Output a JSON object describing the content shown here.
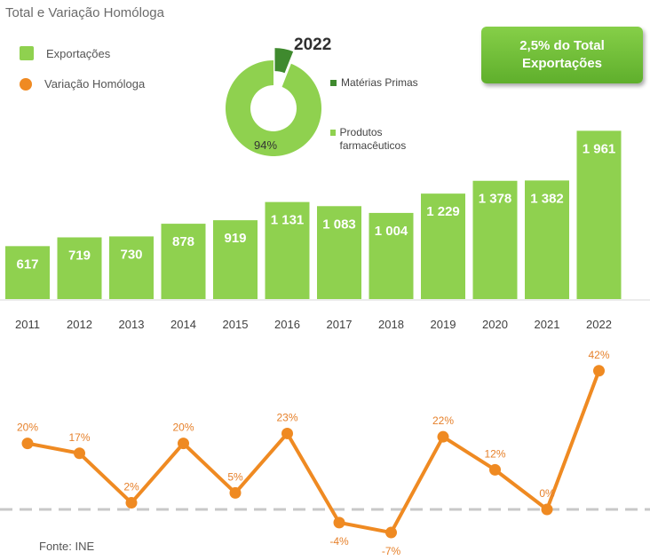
{
  "title": "Total e Variação Homóloga",
  "legend": {
    "exports": "Exportações",
    "variation": "Variação Homóloga"
  },
  "badge": {
    "line1": "2,5% do Total",
    "line2": "Exportações"
  },
  "donut": {
    "year": "2022",
    "label_products": "94%",
    "legend_raw": "Matérias Primas",
    "legend_products": "Produtos farmacêuticos",
    "slices": [
      {
        "name": "Produtos farmacêuticos",
        "value": 94,
        "color": "#8fd14f"
      },
      {
        "name": "Matérias Primas",
        "value": 6,
        "color": "#3f8a2e"
      }
    ]
  },
  "source": "Fonte: INE",
  "colors": {
    "bar": "#8fd14f",
    "line": "#ef8a22",
    "raw_materials": "#3f8a2e",
    "zero_line": "#cccccc"
  },
  "chart_data": [
    {
      "type": "bar",
      "categories": [
        "2011",
        "2012",
        "2013",
        "2014",
        "2015",
        "2016",
        "2017",
        "2018",
        "2019",
        "2020",
        "2021",
        "2022"
      ],
      "values": [
        617,
        719,
        730,
        878,
        919,
        1131,
        1083,
        1004,
        1229,
        1378,
        1382,
        1961
      ],
      "data_labels": [
        "617",
        "719",
        "730",
        "878",
        "919",
        "1 131",
        "1 083",
        "1 004",
        "1 229",
        "1 378",
        "1 382",
        "1 961"
      ],
      "series_name": "Exportações",
      "ylim": [
        0,
        2000
      ]
    },
    {
      "type": "line",
      "categories": [
        "2011",
        "2012",
        "2013",
        "2014",
        "2015",
        "2016",
        "2017",
        "2018",
        "2019",
        "2020",
        "2021",
        "2022"
      ],
      "values": [
        20,
        17,
        2,
        20,
        5,
        23,
        -4,
        -7,
        22,
        12,
        0,
        42
      ],
      "data_labels": [
        "20%",
        "17%",
        "2%",
        "20%",
        "5%",
        "23%",
        "-4%",
        "-7%",
        "22%",
        "12%",
        "0%",
        "42%"
      ],
      "series_name": "Variação Homóloga",
      "ylim": [
        -10,
        45
      ]
    },
    {
      "type": "pie",
      "title": "2022",
      "categories": [
        "Produtos farmacêuticos",
        "Matérias Primas"
      ],
      "values": [
        94,
        6
      ]
    }
  ]
}
